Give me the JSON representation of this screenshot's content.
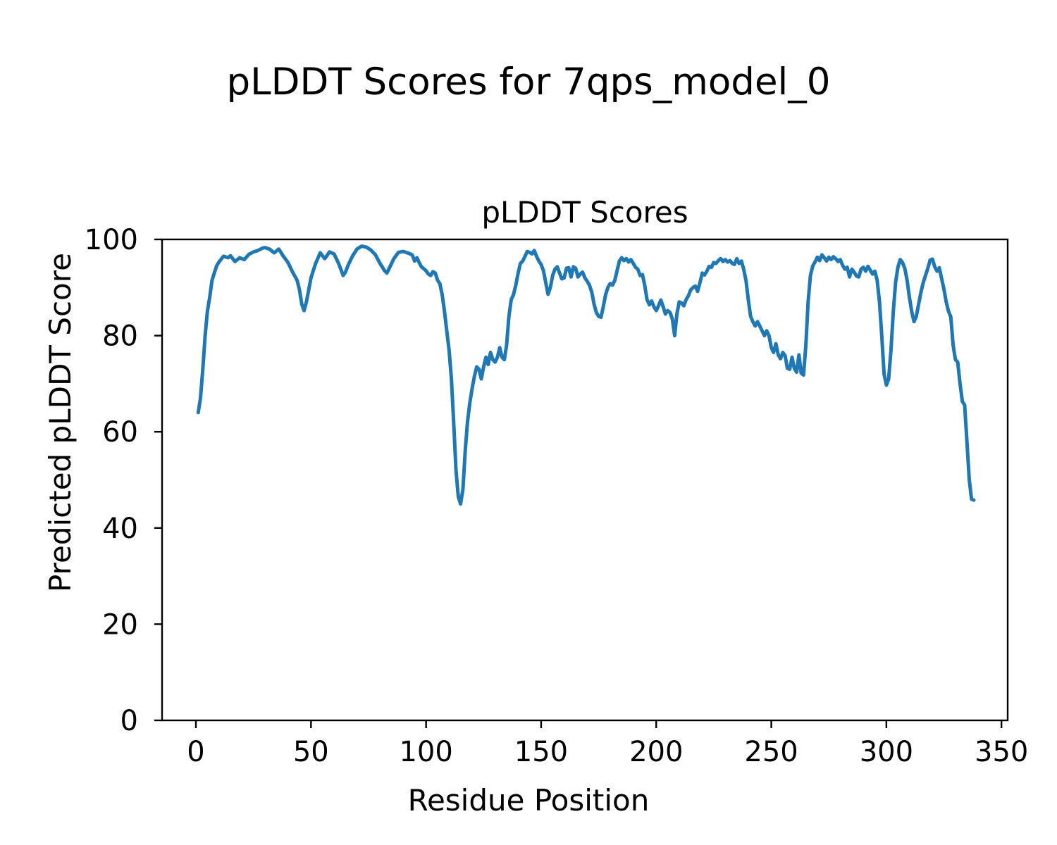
{
  "figure": {
    "suptitle": "pLDDT Scores for 7qps_model_0",
    "background": "#ffffff",
    "text_color": "#000000"
  },
  "chart_data": {
    "type": "line",
    "title": "pLDDT Scores",
    "xlabel": "Residue Position",
    "ylabel": "Predicted pLDDT Score",
    "xlim": [
      -14.7,
      352.7
    ],
    "ylim": [
      0,
      100
    ],
    "xticks": [
      0,
      50,
      100,
      150,
      200,
      250,
      300,
      350
    ],
    "yticks": [
      0,
      20,
      40,
      60,
      80,
      100
    ],
    "grid": false,
    "legend": null,
    "line_color": "#1f77b4",
    "line_width": 5,
    "series": [
      {
        "name": "pLDDT",
        "x": [
          1,
          2,
          3,
          4,
          5,
          6,
          7,
          8,
          9,
          10,
          12,
          14,
          15,
          17,
          19,
          21,
          23,
          25,
          27,
          29,
          30,
          32,
          34,
          36,
          38,
          40,
          42,
          44,
          45,
          46,
          47,
          48,
          49,
          50,
          52,
          54,
          56,
          58,
          60,
          62,
          64,
          65,
          66,
          68,
          70,
          72,
          74,
          76,
          78,
          80,
          82,
          83,
          84,
          86,
          88,
          90,
          92,
          94,
          95,
          96,
          97,
          98,
          100,
          101,
          102,
          103,
          104,
          105,
          106,
          107,
          108,
          109,
          110,
          111,
          112,
          113,
          114,
          115,
          116,
          117,
          118,
          119,
          120,
          121,
          122,
          123,
          124,
          125,
          126,
          127,
          128,
          129,
          130,
          131,
          132,
          133,
          134,
          135,
          136,
          137,
          138,
          139,
          140,
          141,
          142,
          143,
          144,
          145,
          146,
          147,
          148,
          149,
          150,
          151,
          152,
          153,
          154,
          155,
          156,
          157,
          158,
          159,
          160,
          161,
          162,
          163,
          164,
          165,
          166,
          167,
          168,
          169,
          170,
          171,
          172,
          173,
          174,
          175,
          176,
          177,
          178,
          179,
          180,
          181,
          182,
          183,
          184,
          185,
          186,
          187,
          188,
          189,
          190,
          191,
          192,
          193,
          194,
          195,
          196,
          197,
          198,
          199,
          200,
          201,
          202,
          203,
          204,
          205,
          206,
          207,
          208,
          209,
          210,
          211,
          212,
          213,
          214,
          215,
          216,
          217,
          218,
          219,
          220,
          221,
          222,
          223,
          224,
          225,
          226,
          227,
          228,
          229,
          230,
          231,
          232,
          233,
          234,
          235,
          236,
          237,
          238,
          239,
          240,
          241,
          242,
          243,
          244,
          245,
          246,
          247,
          248,
          249,
          250,
          251,
          252,
          253,
          254,
          255,
          256,
          257,
          258,
          259,
          260,
          261,
          262,
          263,
          264,
          265,
          266,
          267,
          268,
          269,
          270,
          271,
          272,
          273,
          274,
          275,
          276,
          277,
          278,
          279,
          280,
          281,
          282,
          283,
          284,
          285,
          286,
          287,
          288,
          289,
          290,
          291,
          292,
          293,
          294,
          295,
          296,
          297,
          298,
          299,
          300,
          301,
          302,
          303,
          304,
          305,
          306,
          307,
          308,
          309,
          310,
          311,
          312,
          313,
          314,
          315,
          316,
          317,
          318,
          319,
          320,
          321,
          322,
          323,
          324,
          325,
          326,
          327,
          328,
          329,
          330,
          331,
          332,
          333,
          334,
          335,
          336,
          337,
          338
        ],
        "y": [
          64,
          67,
          73,
          80,
          85,
          88,
          91.5,
          93,
          94.5,
          95.3,
          96.5,
          96.2,
          96.6,
          95.4,
          96.2,
          95.8,
          96.9,
          97.4,
          97.7,
          98.2,
          98.3,
          98,
          97.2,
          98,
          96.5,
          95.2,
          93.2,
          91.5,
          89.5,
          86.5,
          85.2,
          87,
          89.5,
          92,
          95,
          97.2,
          96,
          97.4,
          97,
          95,
          92.5,
          93.2,
          94.5,
          96.5,
          98,
          98.6,
          98.4,
          97.8,
          96.8,
          95,
          93.5,
          93,
          94,
          96,
          97.3,
          97.5,
          97.2,
          96.8,
          95.5,
          96.2,
          95.2,
          94.3,
          93.5,
          92.8,
          92.5,
          93.3,
          93,
          91.5,
          90.8,
          88.5,
          85,
          81,
          77,
          71,
          62,
          52,
          46.5,
          45,
          48,
          56,
          62,
          66,
          69,
          71.5,
          73.5,
          73,
          71,
          73.5,
          75.5,
          74,
          76.5,
          75,
          74.5,
          75.5,
          77.5,
          75.5,
          75,
          78,
          84,
          87.5,
          88.5,
          90.5,
          93,
          95,
          95.5,
          96.5,
          97.5,
          97.3,
          97,
          97.7,
          96.5,
          95.5,
          94.8,
          93.5,
          91,
          88.6,
          90,
          92.5,
          93.8,
          94.3,
          93,
          91.8,
          92,
          94,
          94.1,
          92.2,
          94.3,
          94,
          92.2,
          92.8,
          93.2,
          92,
          91.3,
          90.5,
          89,
          86.5,
          84.8,
          84,
          83.8,
          86,
          88.5,
          90,
          90.8,
          90.5,
          91.5,
          93.5,
          95.5,
          96.2,
          95.6,
          96,
          95.3,
          95.8,
          95,
          94.2,
          93.8,
          92.5,
          92.7,
          90.5,
          87.5,
          86.4,
          87.2,
          86,
          85.2,
          86.2,
          87.4,
          86,
          84.5,
          85.2,
          84.8,
          83.5,
          80,
          84.5,
          87,
          86.8,
          86.2,
          87.5,
          88.3,
          89.5,
          90,
          90.3,
          89.2,
          91,
          93,
          92.6,
          93.4,
          94.4,
          94.2,
          95.2,
          95,
          95.6,
          96,
          95.4,
          95.8,
          95.3,
          95.6,
          95,
          94.8,
          96,
          95,
          95.5,
          93.8,
          91.5,
          87.5,
          84,
          82.9,
          82,
          82.9,
          82,
          81,
          80,
          81,
          80,
          77.5,
          76.5,
          78.3,
          76,
          75.2,
          76.5,
          75.8,
          73.2,
          73,
          75.5,
          73.2,
          72.4,
          76,
          72.2,
          71.8,
          78,
          87,
          92.5,
          94.5,
          95.3,
          96.3,
          95.6,
          96.8,
          96.2,
          95.5,
          96.3,
          95.8,
          96.4,
          96,
          95.4,
          95.8,
          94.6,
          93.8,
          94.2,
          92.2,
          93.8,
          93.2,
          92.4,
          92.2,
          93.8,
          94.2,
          93.4,
          94.4,
          93.6,
          92.8,
          93.4,
          91.5,
          87,
          80,
          72,
          69.7,
          71,
          77,
          85,
          91,
          94.2,
          95.8,
          95.2,
          94,
          91.5,
          88,
          85,
          82.9,
          84,
          86.5,
          89,
          91,
          92.5,
          94,
          95.7,
          95.9,
          94.3,
          93.4,
          94.1,
          91.8,
          89.7,
          87,
          85,
          83.9,
          78,
          75,
          74.5,
          70,
          66.3,
          65.6,
          58,
          50,
          46,
          45.8
        ]
      }
    ]
  }
}
